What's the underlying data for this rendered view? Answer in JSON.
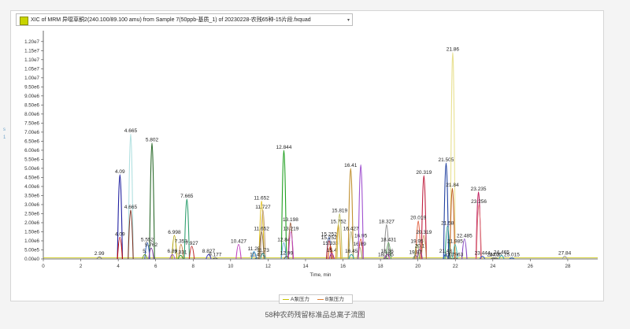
{
  "header": {
    "selector_text": "XIC of MRM 异噁草酮2(240.100/89.100 amu) from Sample 7(50ppb-基质_1) of 20230228-农残65种-15片段.fxquad",
    "selector_arrow": "▾"
  },
  "side_marks": [
    "s",
    "1"
  ],
  "caption": "58种农药残留标准品总离子流图",
  "legend": {
    "items": [
      {
        "label": "A泵压力",
        "color": "#c8c400"
      },
      {
        "label": "B泵压力",
        "color": "#e08030"
      }
    ]
  },
  "chart_data": {
    "type": "line",
    "title": "",
    "xlabel": "Time, min",
    "ylabel": "",
    "xlim": [
      0,
      29.6
    ],
    "ylim": [
      0,
      12600000.0
    ],
    "x_ticks": [
      0,
      2,
      4,
      6,
      8,
      10,
      12,
      14,
      16,
      18,
      20,
      22,
      24,
      26,
      28
    ],
    "y_ticks": [
      {
        "v": 0,
        "label": "0.00e0"
      },
      {
        "v": 500000,
        "label": "5.00e5"
      },
      {
        "v": 1000000,
        "label": "1.00e6"
      },
      {
        "v": 1500000,
        "label": "1.50e6"
      },
      {
        "v": 2000000,
        "label": "2.00e6"
      },
      {
        "v": 2500000,
        "label": "2.50e6"
      },
      {
        "v": 3000000,
        "label": "3.00e6"
      },
      {
        "v": 3500000,
        "label": "3.50e6"
      },
      {
        "v": 4000000,
        "label": "4.00e6"
      },
      {
        "v": 4500000,
        "label": "4.50e6"
      },
      {
        "v": 5000000,
        "label": "5.00e6"
      },
      {
        "v": 5500000,
        "label": "5.50e6"
      },
      {
        "v": 6000000,
        "label": "6.00e6"
      },
      {
        "v": 6500000,
        "label": "6.50e6"
      },
      {
        "v": 7000000,
        "label": "7.00e6"
      },
      {
        "v": 7500000,
        "label": "7.50e6"
      },
      {
        "v": 8000000,
        "label": "8.00e6"
      },
      {
        "v": 8500000,
        "label": "8.50e6"
      },
      {
        "v": 9000000,
        "label": "9.00e6"
      },
      {
        "v": 9500000,
        "label": "9.50e6"
      },
      {
        "v": 10000000,
        "label": "1.00e7"
      },
      {
        "v": 10500000,
        "label": "1.05e7"
      },
      {
        "v": 11000000,
        "label": "1.10e7"
      },
      {
        "v": 11500000,
        "label": "1.15e7"
      },
      {
        "v": 12000000,
        "label": "1.20e7"
      }
    ],
    "peaks": [
      {
        "x": 2.99,
        "y": 120000,
        "color": "#808080",
        "label": "2.99"
      },
      {
        "x": 4.09,
        "y": 4650000,
        "color": "#2020a0",
        "label": "4.09"
      },
      {
        "x": 4.09,
        "y": 1200000,
        "color": "#c00000",
        "label": "4.09"
      },
      {
        "x": 4.665,
        "y": 6900000,
        "color": "#b0e0e0",
        "label": "4.665"
      },
      {
        "x": 4.665,
        "y": 2700000,
        "color": "#7a3020",
        "label": "4.665"
      },
      {
        "x": 5.802,
        "y": 6400000,
        "color": "#2a6a2a",
        "label": "5.802"
      },
      {
        "x": 5.552,
        "y": 900000,
        "color": "#3060c0",
        "label": "5.552"
      },
      {
        "x": 5.762,
        "y": 600000,
        "color": "#8040a0",
        "label": "5.762"
      },
      {
        "x": 5.42,
        "y": 250000,
        "color": "#70a030",
        "label": "5."
      },
      {
        "x": 6.998,
        "y": 1300000,
        "color": "#b0a000",
        "label": "6.998"
      },
      {
        "x": 6.89,
        "y": 250000,
        "color": "#a060c0",
        "label": "6.89"
      },
      {
        "x": 7.353,
        "y": 800000,
        "color": "#c08040",
        "label": "7.353"
      },
      {
        "x": 7.331,
        "y": 200000,
        "color": "#40a040",
        "label": "7.331"
      },
      {
        "x": 7.665,
        "y": 3300000,
        "color": "#30a070",
        "label": "7.665"
      },
      {
        "x": 7.927,
        "y": 700000,
        "color": "#c03030",
        "label": "7.927"
      },
      {
        "x": 8.827,
        "y": 250000,
        "color": "#4040c0",
        "label": "8.827"
      },
      {
        "x": 9.177,
        "y": 60000,
        "color": "#606060",
        "label": "9.177"
      },
      {
        "x": 10.427,
        "y": 800000,
        "color": "#c040c0",
        "label": "10.427"
      },
      {
        "x": 11.25,
        "y": 400000,
        "color": "#2080c0",
        "label": "11.25"
      },
      {
        "x": 11.427,
        "y": 60000,
        "color": "#606060",
        "label": "11.427"
      },
      {
        "x": 11.652,
        "y": 3200000,
        "color": "#e0c020",
        "label": "11.652"
      },
      {
        "x": 11.727,
        "y": 2700000,
        "color": "#c0a080",
        "label": "11.727"
      },
      {
        "x": 11.652,
        "y": 1500000,
        "color": "#806040",
        "label": "11.652"
      },
      {
        "x": 11.73,
        "y": 300000,
        "color": "#40a0a0",
        "label": "11.73"
      },
      {
        "x": 12.844,
        "y": 6000000,
        "color": "#20a020",
        "label": "12.844"
      },
      {
        "x": 12.84,
        "y": 900000,
        "color": "#60a0e0",
        "label": "12.84"
      },
      {
        "x": 13.198,
        "y": 2000000,
        "color": "#a06040",
        "label": "13.198"
      },
      {
        "x": 13.219,
        "y": 1500000,
        "color": "#c040c0",
        "label": "13.219"
      },
      {
        "x": 12.99,
        "y": 150000,
        "color": "#606060",
        "label": "12.99"
      },
      {
        "x": 15.252,
        "y": 1200000,
        "color": "#3060c0",
        "label": "15.252"
      },
      {
        "x": 15.252,
        "y": 1000000,
        "color": "#c02020",
        "label": "15.252"
      },
      {
        "x": 15.333,
        "y": 700000,
        "color": "#e06020",
        "label": "15.333"
      },
      {
        "x": 15.4,
        "y": 300000,
        "color": "#a030a0",
        "label": "15.4"
      },
      {
        "x": 15.752,
        "y": 1900000,
        "color": "#e0a020",
        "label": "15.752"
      },
      {
        "x": 15.819,
        "y": 2500000,
        "color": "#c0c060",
        "label": "15.819"
      },
      {
        "x": 16.41,
        "y": 5000000,
        "color": "#c09030",
        "label": "16.41"
      },
      {
        "x": 16.427,
        "y": 1500000,
        "color": "#a0a060",
        "label": "16.427"
      },
      {
        "x": 16.95,
        "y": 1100000,
        "color": "#e04020",
        "label": "16.95"
      },
      {
        "x": 16.89,
        "y": 650000,
        "color": "#a0a060",
        "label": "16.89"
      },
      {
        "x": 16.95,
        "y": 5200000,
        "color": "#a050d0",
        "label": ""
      },
      {
        "x": 16.45,
        "y": 250000,
        "color": "#30a0a0",
        "label": "16.45"
      },
      {
        "x": 18.327,
        "y": 1900000,
        "color": "#909090",
        "label": "18.327"
      },
      {
        "x": 18.431,
        "y": 900000,
        "color": "#60a060",
        "label": "18.431"
      },
      {
        "x": 18.36,
        "y": 250000,
        "color": "#c040c0",
        "label": "18.36"
      },
      {
        "x": 18.285,
        "y": 60000,
        "color": "#606060",
        "label": "18.285"
      },
      {
        "x": 20.319,
        "y": 4600000,
        "color": "#c02040",
        "label": "20.319"
      },
      {
        "x": 20.019,
        "y": 2100000,
        "color": "#e06040",
        "label": "20.019"
      },
      {
        "x": 20.319,
        "y": 1300000,
        "color": "#c08040",
        "label": "20.319"
      },
      {
        "x": 19.95,
        "y": 800000,
        "color": "#80a040",
        "label": "19.95"
      },
      {
        "x": 20.1,
        "y": 550000,
        "color": "#a040a0",
        "label": "20.1"
      },
      {
        "x": 19.87,
        "y": 200000,
        "color": "#808080",
        "label": "19.87"
      },
      {
        "x": 21.505,
        "y": 5300000,
        "color": "#2040a0",
        "label": "21.505"
      },
      {
        "x": 21.86,
        "y": 11400000,
        "color": "#e8e090",
        "label": "21.86"
      },
      {
        "x": 21.84,
        "y": 3900000,
        "color": "#c06020",
        "label": "21.84"
      },
      {
        "x": 21.58,
        "y": 1800000,
        "color": "#20a080",
        "label": "21.58"
      },
      {
        "x": 21.985,
        "y": 800000,
        "color": "#40c0c0",
        "label": "21.985"
      },
      {
        "x": 21.48,
        "y": 250000,
        "color": "#3060c0",
        "label": "21.48"
      },
      {
        "x": 21.7,
        "y": 60000,
        "color": "#606060",
        "label": "21.7"
      },
      {
        "x": 22.485,
        "y": 1100000,
        "color": "#8040c0",
        "label": "22.485"
      },
      {
        "x": 22.0,
        "y": 60000,
        "color": "#606060",
        "label": "21.963"
      },
      {
        "x": 23.235,
        "y": 3700000,
        "color": "#c02060",
        "label": "23.235"
      },
      {
        "x": 23.256,
        "y": 3000000,
        "color": "#e08080",
        "label": "23.256"
      },
      {
        "x": 23.444,
        "y": 150000,
        "color": "#4060c0",
        "label": "23.444"
      },
      {
        "x": 24.03,
        "y": 60000,
        "color": "#606060",
        "label": "24.03"
      },
      {
        "x": 24.15,
        "y": 60000,
        "color": "#606060",
        "label": "24.15"
      },
      {
        "x": 24.465,
        "y": 200000,
        "color": "#40a0a0",
        "label": "24.465"
      },
      {
        "x": 25.015,
        "y": 60000,
        "color": "#3060c0",
        "label": "25.015"
      },
      {
        "x": 27.84,
        "y": 150000,
        "color": "#a0a0a0",
        "label": "27.84"
      }
    ]
  }
}
